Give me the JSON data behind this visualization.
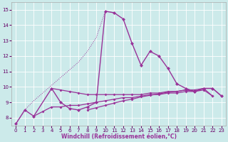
{
  "xlabel": "Windchill (Refroidissement éolien,°C)",
  "bg_color": "#cceaea",
  "grid_color": "#ffffff",
  "line_color": "#993399",
  "hours": [
    0,
    1,
    2,
    3,
    4,
    5,
    6,
    7,
    8,
    9,
    10,
    11,
    12,
    13,
    14,
    15,
    16,
    17,
    18,
    19,
    20,
    21,
    22,
    23
  ],
  "ylim": [
    7.5,
    15.5
  ],
  "yticks": [
    8,
    9,
    10,
    11,
    12,
    13,
    14,
    15
  ],
  "xlim": [
    -0.5,
    23.5
  ],
  "series_spiky": [
    7.6,
    8.5,
    8.1,
    null,
    9.9,
    9.0,
    8.6,
    8.5,
    8.7,
    9.0,
    14.9,
    14.8,
    14.4,
    12.8,
    11.4,
    12.3,
    12.0,
    11.2,
    10.2,
    9.9,
    9.7,
    9.9,
    9.9,
    9.4
  ],
  "series_dotted_x": [
    0,
    1,
    2,
    3,
    4,
    5,
    6,
    7,
    8,
    9,
    10,
    11
  ],
  "series_dotted_y": [
    7.6,
    8.5,
    9.1,
    9.6,
    10.1,
    10.6,
    11.1,
    11.6,
    12.3,
    13.2,
    14.9,
    14.8
  ],
  "series_flat_high": [
    null,
    null,
    null,
    null,
    9.9,
    9.8,
    9.7,
    9.6,
    9.5,
    9.5,
    9.5,
    9.5,
    9.5,
    9.5,
    9.5,
    9.6,
    9.6,
    9.7,
    9.7,
    9.8,
    9.7,
    9.9,
    9.9,
    9.4
  ],
  "series_flat_mid": [
    null,
    null,
    8.1,
    8.4,
    8.7,
    8.7,
    8.8,
    8.8,
    8.9,
    9.0,
    9.1,
    9.2,
    9.3,
    9.3,
    9.4,
    9.5,
    9.5,
    9.6,
    9.6,
    9.7,
    9.7,
    9.8,
    9.4,
    null
  ],
  "series_flat_low": [
    null,
    null,
    null,
    null,
    null,
    null,
    null,
    null,
    8.5,
    8.65,
    8.8,
    8.95,
    9.1,
    9.2,
    9.35,
    9.45,
    9.55,
    9.65,
    9.7,
    9.8,
    9.8,
    9.9,
    9.4,
    null
  ]
}
